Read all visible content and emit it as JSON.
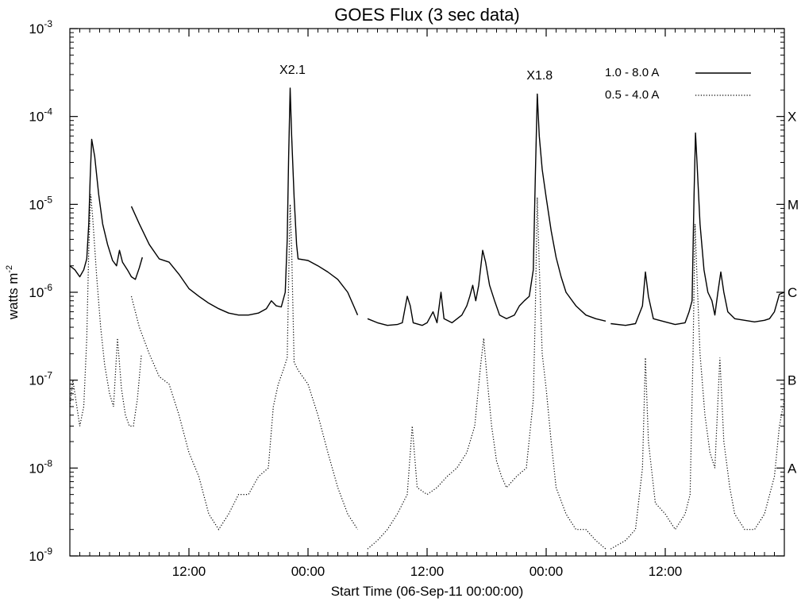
{
  "chart_data": {
    "type": "line",
    "title": "GOES Flux (3 sec data)",
    "xlabel": "Start Time (06-Sep-11 00:00:00)",
    "ylabel": "watts m",
    "ylabel_sup": "-2",
    "yscale": "log",
    "x_unit": "hours after 06-Sep-11 00:00:00",
    "xlim": [
      0,
      72
    ],
    "ylim": [
      1e-09,
      0.001
    ],
    "x_ticks": [
      {
        "value": 12,
        "label": "12:00"
      },
      {
        "value": 24,
        "label": "00:00"
      },
      {
        "value": 36,
        "label": "12:00"
      },
      {
        "value": 48,
        "label": "00:00"
      },
      {
        "value": 60,
        "label": "12:00"
      }
    ],
    "y_ticks": [
      {
        "value": 1e-09,
        "base": "10",
        "exp": "-9"
      },
      {
        "value": 1e-08,
        "base": "10",
        "exp": "-8"
      },
      {
        "value": 1e-07,
        "base": "10",
        "exp": "-7"
      },
      {
        "value": 1e-06,
        "base": "10",
        "exp": "-6"
      },
      {
        "value": 1e-05,
        "base": "10",
        "exp": "-5"
      },
      {
        "value": 0.0001,
        "base": "10",
        "exp": "-4"
      },
      {
        "value": 0.001,
        "base": "10",
        "exp": "-3"
      }
    ],
    "class_labels": [
      {
        "value": 0.0001,
        "label": "X"
      },
      {
        "value": 1e-05,
        "label": "M"
      },
      {
        "value": 1e-06,
        "label": "C"
      },
      {
        "value": 1e-07,
        "label": "B"
      },
      {
        "value": 1e-08,
        "label": "A"
      }
    ],
    "flare_labels": [
      {
        "x": 22.2,
        "y": 0.00021,
        "label": "X2.1"
      },
      {
        "x": 47.1,
        "y": 0.000181,
        "label": "X1.8"
      }
    ],
    "legend": {
      "position": "top-right",
      "entries": [
        {
          "label": "1.0 - 8.0 A",
          "style": "solid"
        },
        {
          "label": "0.5 - 4.0 A",
          "style": "dotted"
        }
      ]
    },
    "series": [
      {
        "name": "1.0 - 8.0 A",
        "style": "solid",
        "segments": [
          [
            [
              0,
              2e-06
            ],
            [
              0.5,
              1.8e-06
            ],
            [
              1.0,
              1.5e-06
            ],
            [
              1.4,
              1.8e-06
            ],
            [
              1.7,
              2.4e-06
            ],
            [
              1.9,
              6e-06
            ],
            [
              2.05,
              2e-05
            ],
            [
              2.2,
              5.5e-05
            ],
            [
              2.5,
              3.5e-05
            ],
            [
              2.9,
              1.3e-05
            ],
            [
              3.3,
              6e-06
            ],
            [
              3.8,
              3.5e-06
            ],
            [
              4.3,
              2.3e-06
            ],
            [
              4.7,
              2e-06
            ],
            [
              5.0,
              3e-06
            ],
            [
              5.3,
              2.2e-06
            ],
            [
              5.8,
              1.8e-06
            ],
            [
              6.2,
              1.5e-06
            ],
            [
              6.6,
              1.4e-06
            ],
            [
              7.0,
              1.9e-06
            ],
            [
              7.3,
              2.5e-06
            ]
          ],
          [
            [
              6.2,
              9.5e-06
            ],
            [
              7.0,
              6e-06
            ],
            [
              8.0,
              3.5e-06
            ],
            [
              9.0,
              2.4e-06
            ],
            [
              10.0,
              2.2e-06
            ],
            [
              11.0,
              1.6e-06
            ],
            [
              12.0,
              1.1e-06
            ],
            [
              13.0,
              9e-07
            ],
            [
              14.0,
              7.5e-07
            ],
            [
              15.0,
              6.5e-07
            ],
            [
              16.0,
              5.8e-07
            ],
            [
              17.0,
              5.5e-07
            ],
            [
              18.0,
              5.5e-07
            ],
            [
              19.0,
              5.8e-07
            ],
            [
              19.8,
              6.5e-07
            ],
            [
              20.3,
              8e-07
            ],
            [
              20.8,
              7e-07
            ],
            [
              21.3,
              6.8e-07
            ],
            [
              21.7,
              1e-06
            ],
            [
              21.9,
              4e-06
            ],
            [
              22.05,
              3.5e-05
            ],
            [
              22.2,
              0.00021
            ],
            [
              22.35,
              6e-05
            ],
            [
              22.6,
              1.2e-05
            ],
            [
              22.85,
              3.5e-06
            ],
            [
              23.0,
              2.4e-06
            ],
            [
              24.0,
              2.3e-06
            ],
            [
              25.0,
              2e-06
            ],
            [
              26.0,
              1.7e-06
            ],
            [
              27.0,
              1.4e-06
            ],
            [
              28.0,
              1e-06
            ],
            [
              28.6,
              7e-07
            ],
            [
              29.0,
              5.5e-07
            ]
          ],
          [
            [
              30.0,
              5e-07
            ],
            [
              31.0,
              4.5e-07
            ],
            [
              32.0,
              4.2e-07
            ],
            [
              33.0,
              4.3e-07
            ],
            [
              33.5,
              4.5e-07
            ],
            [
              34.0,
              9e-07
            ],
            [
              34.3,
              7e-07
            ],
            [
              34.6,
              4.5e-07
            ],
            [
              35.5,
              4.2e-07
            ],
            [
              36.0,
              4.5e-07
            ],
            [
              36.6,
              6e-07
            ],
            [
              37.0,
              4.5e-07
            ],
            [
              37.4,
              1e-06
            ],
            [
              37.7,
              5e-07
            ],
            [
              38.5,
              4.5e-07
            ],
            [
              39.5,
              5.5e-07
            ],
            [
              40.0,
              7e-07
            ],
            [
              40.3,
              9e-07
            ],
            [
              40.6,
              1.2e-06
            ],
            [
              40.9,
              8e-07
            ],
            [
              41.2,
              1.2e-06
            ],
            [
              41.6,
              3e-06
            ],
            [
              41.9,
              2.2e-06
            ],
            [
              42.3,
              1.2e-06
            ],
            [
              42.8,
              8e-07
            ],
            [
              43.3,
              5.5e-07
            ],
            [
              44.0,
              5e-07
            ],
            [
              44.8,
              5.5e-07
            ],
            [
              45.3,
              7e-07
            ],
            [
              45.8,
              8e-07
            ],
            [
              46.3,
              9e-07
            ],
            [
              46.7,
              1.8e-06
            ],
            [
              46.9,
              2e-05
            ],
            [
              47.1,
              0.00018
            ],
            [
              47.3,
              6e-05
            ],
            [
              47.6,
              2.5e-05
            ],
            [
              48.0,
              1.2e-05
            ],
            [
              48.5,
              5e-06
            ],
            [
              49.0,
              2.5e-06
            ],
            [
              49.5,
              1.5e-06
            ],
            [
              50.0,
              1e-06
            ],
            [
              51.0,
              7e-07
            ],
            [
              52.0,
              5.5e-07
            ],
            [
              53.0,
              5e-07
            ],
            [
              54.0,
              4.7e-07
            ]
          ],
          [
            [
              54.5,
              4.4e-07
            ],
            [
              56.0,
              4.2e-07
            ],
            [
              57.0,
              4.4e-07
            ],
            [
              57.7,
              7e-07
            ],
            [
              58.0,
              1.7e-06
            ],
            [
              58.3,
              9e-07
            ],
            [
              58.8,
              5e-07
            ],
            [
              60.0,
              4.6e-07
            ],
            [
              61.0,
              4.3e-07
            ],
            [
              62.0,
              4.5e-07
            ],
            [
              62.4,
              6e-07
            ],
            [
              62.7,
              8e-07
            ],
            [
              62.9,
              1.3e-05
            ],
            [
              63.05,
              6.5e-05
            ],
            [
              63.2,
              3e-05
            ],
            [
              63.5,
              6e-06
            ],
            [
              63.9,
              1.8e-06
            ],
            [
              64.3,
              1e-06
            ],
            [
              64.7,
              8e-07
            ],
            [
              65.0,
              5.5e-07
            ],
            [
              65.3,
              1e-06
            ],
            [
              65.6,
              1.7e-06
            ],
            [
              65.9,
              1e-06
            ],
            [
              66.3,
              6e-07
            ],
            [
              67.0,
              5e-07
            ],
            [
              68.0,
              4.8e-07
            ],
            [
              69.0,
              4.6e-07
            ],
            [
              70.0,
              4.8e-07
            ],
            [
              70.5,
              5e-07
            ],
            [
              71.0,
              6e-07
            ],
            [
              71.5,
              9.5e-07
            ],
            [
              72.0,
              1e-06
            ]
          ]
        ]
      },
      {
        "name": "0.5 - 4.0 A",
        "style": "dotted",
        "segments": [
          [
            [
              0,
              5e-08
            ],
            [
              0.3,
              1e-07
            ],
            [
              0.7,
              5e-08
            ],
            [
              1.0,
              3e-08
            ],
            [
              1.4,
              5e-08
            ],
            [
              1.7,
              3e-07
            ],
            [
              1.9,
              3e-06
            ],
            [
              2.1,
              1.3e-05
            ],
            [
              2.3,
              7e-06
            ],
            [
              2.7,
              1.5e-06
            ],
            [
              3.1,
              4e-07
            ],
            [
              3.5,
              1.5e-07
            ],
            [
              4.0,
              7e-08
            ],
            [
              4.4,
              5e-08
            ],
            [
              4.8,
              3e-07
            ],
            [
              5.2,
              8e-08
            ],
            [
              5.6,
              4e-08
            ],
            [
              6.0,
              3e-08
            ],
            [
              6.4,
              3e-08
            ],
            [
              6.8,
              6e-08
            ],
            [
              7.2,
              1.9e-07
            ]
          ],
          [
            [
              6.2,
              9e-07
            ],
            [
              7.0,
              4e-07
            ],
            [
              8.0,
              2e-07
            ],
            [
              9.0,
              1.1e-07
            ],
            [
              10.0,
              9e-08
            ],
            [
              11.0,
              4e-08
            ],
            [
              12.0,
              1.5e-08
            ],
            [
              13.0,
              8e-09
            ],
            [
              14.0,
              3e-09
            ],
            [
              15.0,
              2e-09
            ],
            [
              16.0,
              3e-09
            ],
            [
              17.0,
              5e-09
            ],
            [
              18.0,
              5e-09
            ],
            [
              19.0,
              8e-09
            ],
            [
              20.0,
              1e-08
            ],
            [
              20.5,
              5e-08
            ],
            [
              21.0,
              9e-08
            ],
            [
              21.5,
              1.3e-07
            ],
            [
              21.9,
              1.8e-07
            ],
            [
              22.1,
              3e-06
            ],
            [
              22.2,
              1e-05
            ],
            [
              22.35,
              3e-06
            ],
            [
              22.6,
              1.6e-07
            ],
            [
              23.0,
              1.3e-07
            ],
            [
              24.0,
              9e-08
            ],
            [
              25.0,
              4e-08
            ],
            [
              26.0,
              1.5e-08
            ],
            [
              27.0,
              6e-09
            ],
            [
              28.0,
              3e-09
            ],
            [
              29.0,
              2e-09
            ]
          ],
          [
            [
              30.0,
              1.2e-09
            ],
            [
              31.0,
              1.5e-09
            ],
            [
              32.0,
              2e-09
            ],
            [
              33.0,
              3e-09
            ],
            [
              34.0,
              5e-09
            ],
            [
              34.5,
              3e-08
            ],
            [
              35.0,
              6e-09
            ],
            [
              36.0,
              5e-09
            ],
            [
              37.0,
              6e-09
            ],
            [
              38.0,
              8e-09
            ],
            [
              39.0,
              1e-08
            ],
            [
              40.0,
              1.5e-08
            ],
            [
              40.8,
              3e-08
            ],
            [
              41.4,
              1.5e-07
            ],
            [
              41.7,
              3e-07
            ],
            [
              42.0,
              1.2e-07
            ],
            [
              42.5,
              3e-08
            ],
            [
              43.0,
              1.2e-08
            ],
            [
              43.5,
              8e-09
            ],
            [
              44.0,
              6e-09
            ],
            [
              45.0,
              8e-09
            ],
            [
              46.0,
              1e-08
            ],
            [
              46.7,
              6e-08
            ],
            [
              46.9,
              6e-07
            ],
            [
              47.1,
              1.2e-05
            ],
            [
              47.3,
              2e-06
            ],
            [
              47.6,
              2e-07
            ],
            [
              48.0,
              8e-08
            ],
            [
              48.5,
              2e-08
            ],
            [
              49.0,
              6e-09
            ],
            [
              50.0,
              3e-09
            ],
            [
              51.0,
              2e-09
            ],
            [
              52.0,
              2e-09
            ],
            [
              53.0,
              1.5e-09
            ],
            [
              54.0,
              1.2e-09
            ]
          ],
          [
            [
              54.5,
              1.2e-09
            ],
            [
              56.0,
              1.5e-09
            ],
            [
              57.0,
              2e-09
            ],
            [
              57.7,
              1e-08
            ],
            [
              58.0,
              1.8e-07
            ],
            [
              58.3,
              2e-08
            ],
            [
              59.0,
              4e-09
            ],
            [
              60.0,
              3e-09
            ],
            [
              61.0,
              2e-09
            ],
            [
              62.0,
              3e-09
            ],
            [
              62.5,
              5e-09
            ],
            [
              62.8,
              2e-07
            ],
            [
              63.0,
              6e-06
            ],
            [
              63.2,
              1.5e-06
            ],
            [
              63.5,
              2e-07
            ],
            [
              64.0,
              4e-08
            ],
            [
              64.5,
              1.5e-08
            ],
            [
              65.0,
              1e-08
            ],
            [
              65.5,
              1.8e-07
            ],
            [
              65.9,
              2e-08
            ],
            [
              66.5,
              6e-09
            ],
            [
              67.0,
              3e-09
            ],
            [
              68.0,
              2e-09
            ],
            [
              69.0,
              2e-09
            ],
            [
              70.0,
              3e-09
            ],
            [
              71.0,
              8e-09
            ],
            [
              71.5,
              3e-08
            ],
            [
              72.0,
              6e-08
            ]
          ]
        ]
      }
    ]
  }
}
